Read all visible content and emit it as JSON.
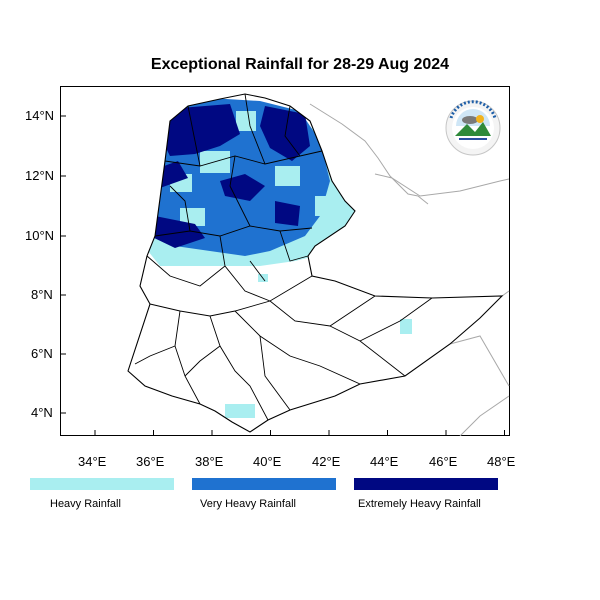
{
  "title": "Exceptional Rainfall for 28-29 Aug 2024",
  "axes": {
    "x_ticks": [
      "34°E",
      "36°E",
      "38°E",
      "40°E",
      "42°E",
      "44°E",
      "46°E",
      "48°E"
    ],
    "y_ticks": [
      "14°N",
      "12°N",
      "10°N",
      "8°N",
      "6°N",
      "4°N"
    ]
  },
  "legend": [
    {
      "label": "Heavy Rainfall",
      "color": "#a9eef0"
    },
    {
      "label": "Very Heavy Rainfall",
      "color": "#1f72d0"
    },
    {
      "label": "Extremely Heavy Rainfall",
      "color": "#000882"
    }
  ],
  "logo": {
    "name": "Ethiopian Meteorology Institute emblem"
  }
}
